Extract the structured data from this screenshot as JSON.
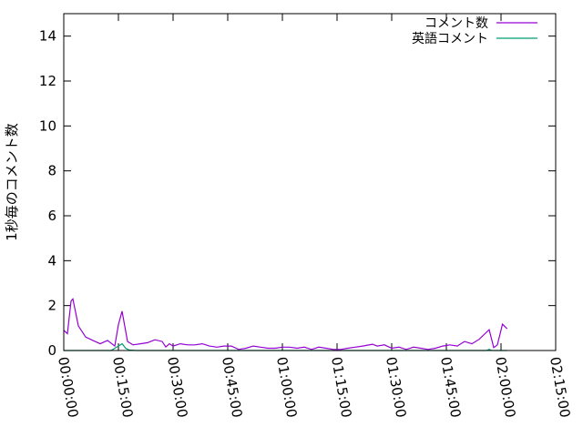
{
  "chart_data": {
    "type": "line",
    "title": "",
    "xlabel": "",
    "ylabel": "1秒毎のコメント数",
    "xlim": [
      "00:00:00",
      "02:15:00"
    ],
    "ylim": [
      0,
      15
    ],
    "x_ticks": [
      "00:00:00",
      "00:15:00",
      "00:30:00",
      "00:45:00",
      "01:00:00",
      "01:15:00",
      "01:30:00",
      "01:45:00",
      "02:00:00",
      "02:15:00"
    ],
    "y_ticks": [
      "0",
      "2",
      "4",
      "6",
      "8",
      "10",
      "12",
      "14"
    ],
    "grid": false,
    "legend_position": "top-right",
    "series": [
      {
        "name": "コメント数",
        "color": "#9400d3",
        "points": [
          [
            "00:00:00",
            0.9
          ],
          [
            "00:01:00",
            0.75
          ],
          [
            "00:02:00",
            2.2
          ],
          [
            "00:02:30",
            2.3
          ],
          [
            "00:04:00",
            1.1
          ],
          [
            "00:06:00",
            0.6
          ],
          [
            "00:08:00",
            0.45
          ],
          [
            "00:10:00",
            0.3
          ],
          [
            "00:12:00",
            0.45
          ],
          [
            "00:14:00",
            0.2
          ],
          [
            "00:15:00",
            1.15
          ],
          [
            "00:16:00",
            1.75
          ],
          [
            "00:17:30",
            0.4
          ],
          [
            "00:19:00",
            0.25
          ],
          [
            "00:21:00",
            0.3
          ],
          [
            "00:23:00",
            0.35
          ],
          [
            "00:25:00",
            0.48
          ],
          [
            "00:27:00",
            0.4
          ],
          [
            "00:28:00",
            0.16
          ],
          [
            "00:29:00",
            0.3
          ],
          [
            "00:30:00",
            0.2
          ],
          [
            "00:32:00",
            0.3
          ],
          [
            "00:34:00",
            0.25
          ],
          [
            "00:36:00",
            0.25
          ],
          [
            "00:38:00",
            0.3
          ],
          [
            "00:40:00",
            0.2
          ],
          [
            "00:42:00",
            0.15
          ],
          [
            "00:44:00",
            0.2
          ],
          [
            "00:46:00",
            0.2
          ],
          [
            "00:48:00",
            0.05
          ],
          [
            "00:50:00",
            0.1
          ],
          [
            "00:52:00",
            0.2
          ],
          [
            "00:54:00",
            0.15
          ],
          [
            "00:56:00",
            0.1
          ],
          [
            "00:58:00",
            0.1
          ],
          [
            "01:00:00",
            0.15
          ],
          [
            "01:02:00",
            0.15
          ],
          [
            "01:04:00",
            0.1
          ],
          [
            "01:06:00",
            0.15
          ],
          [
            "01:08:00",
            0.05
          ],
          [
            "01:10:00",
            0.15
          ],
          [
            "01:12:00",
            0.1
          ],
          [
            "01:14:00",
            0.05
          ],
          [
            "01:16:00",
            0.05
          ],
          [
            "01:18:00",
            0.1
          ],
          [
            "01:20:00",
            0.15
          ],
          [
            "01:22:00",
            0.2
          ],
          [
            "01:24:45",
            0.28
          ],
          [
            "01:26:00",
            0.2
          ],
          [
            "01:28:00",
            0.25
          ],
          [
            "01:30:00",
            0.1
          ],
          [
            "01:32:00",
            0.15
          ],
          [
            "01:34:00",
            0.05
          ],
          [
            "01:36:00",
            0.15
          ],
          [
            "01:38:00",
            0.1
          ],
          [
            "01:40:00",
            0.05
          ],
          [
            "01:42:00",
            0.1
          ],
          [
            "01:44:00",
            0.2
          ],
          [
            "01:46:00",
            0.25
          ],
          [
            "01:48:00",
            0.2
          ],
          [
            "01:50:00",
            0.4
          ],
          [
            "01:52:00",
            0.3
          ],
          [
            "01:54:00",
            0.5
          ],
          [
            "01:56:45",
            0.93
          ],
          [
            "01:58:00",
            0.13
          ],
          [
            "01:59:00",
            0.25
          ],
          [
            "02:00:24",
            1.17
          ],
          [
            "02:01:40",
            0.97
          ]
        ]
      },
      {
        "name": "英語コメント",
        "color": "#009e73",
        "points": [
          [
            "00:00:00",
            0
          ],
          [
            "00:13:00",
            0
          ],
          [
            "00:14:00",
            0.1
          ],
          [
            "00:15:00",
            0.2
          ],
          [
            "00:16:00",
            0.3
          ],
          [
            "00:17:00",
            0.1
          ],
          [
            "00:18:00",
            0.02
          ],
          [
            "00:20:00",
            0
          ],
          [
            "01:56:00",
            0
          ],
          [
            "01:56:45",
            0.05
          ],
          [
            "01:57:30",
            0
          ],
          [
            "02:01:40",
            0
          ]
        ]
      }
    ]
  }
}
